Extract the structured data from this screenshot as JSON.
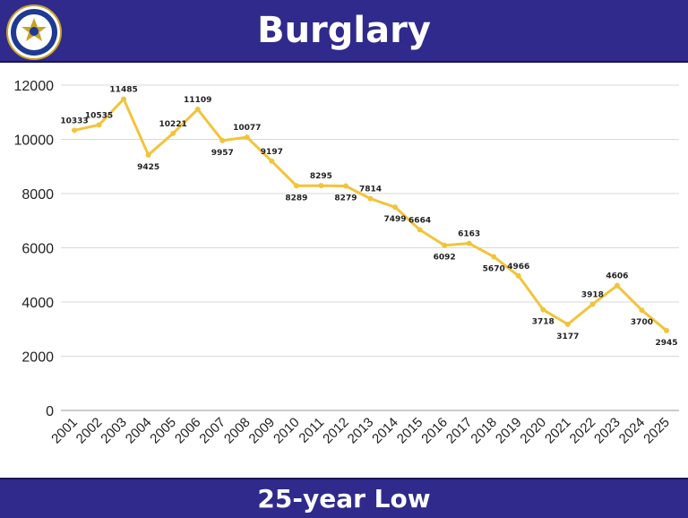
{
  "header": {
    "title": "Burglary"
  },
  "footer": {
    "text": "25-year Low"
  },
  "colors": {
    "banner": "#2f2a8c",
    "line": "#f2c43b",
    "grid": "#d9d9d9"
  },
  "chart_data": {
    "type": "line",
    "title": "",
    "xlabel": "",
    "ylabel": "",
    "categories": [
      "2001",
      "2002",
      "2003",
      "2004",
      "2005",
      "2006",
      "2007",
      "2008",
      "2009",
      "2010",
      "2011",
      "2012",
      "2013",
      "2014",
      "2015",
      "2016",
      "2017",
      "2018",
      "2019",
      "2020",
      "2021",
      "2022",
      "2023",
      "2024",
      "2025"
    ],
    "series": [
      {
        "values": [
          10333,
          10535,
          11485,
          9425,
          10221,
          11109,
          9957,
          10077,
          9197,
          8289,
          8295,
          8279,
          7814,
          7499,
          6664,
          6092,
          6163,
          5670,
          4966,
          3718,
          3177,
          3918,
          4606,
          3700,
          2945
        ]
      }
    ],
    "ylim": [
      0,
      12000
    ],
    "yticks": [
      0,
      2000,
      4000,
      6000,
      8000,
      10000,
      12000
    ],
    "grid": true,
    "legend": "none",
    "data_labels": true
  }
}
